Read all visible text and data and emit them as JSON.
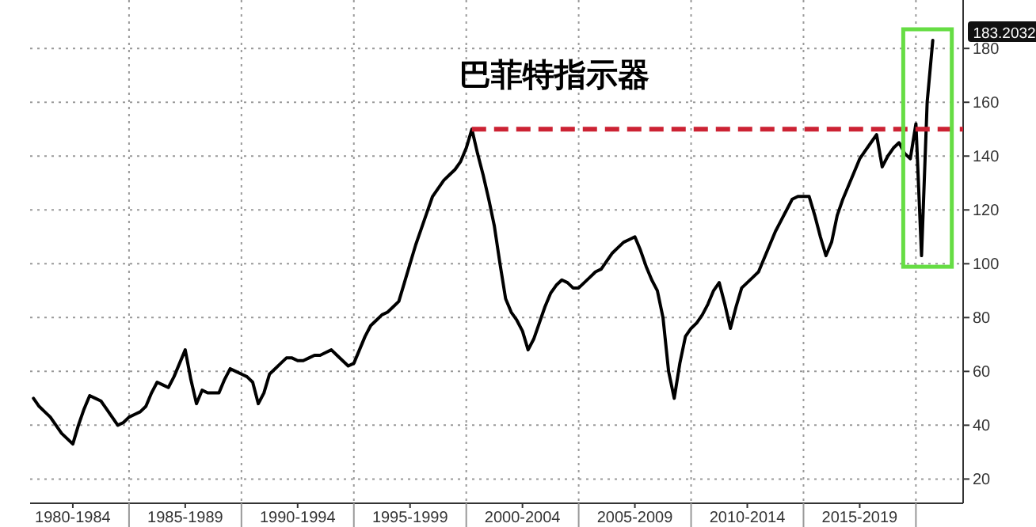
{
  "chart_data": {
    "type": "line",
    "title": "巴菲特指示器",
    "categories": [
      null,
      null,
      null,
      null,
      null,
      null,
      null,
      "1980-1984",
      null,
      null,
      null,
      null,
      null,
      null,
      null,
      null,
      null,
      null,
      null,
      null,
      null,
      null,
      null,
      null,
      null,
      null,
      null,
      "1985-1989",
      null,
      null,
      null,
      null,
      null,
      null,
      null,
      null,
      null,
      null,
      null,
      null,
      null,
      null,
      null,
      null,
      null,
      null,
      null,
      "1990-1994",
      null,
      null,
      null,
      null,
      null,
      null,
      null,
      null,
      null,
      null,
      null,
      null,
      null,
      null,
      null,
      null,
      null,
      null,
      null,
      "1995-1999",
      null,
      null,
      null,
      null,
      null,
      null,
      null,
      null,
      null,
      null,
      null,
      null,
      null,
      null,
      null,
      null,
      null,
      null,
      null,
      "2000-2004",
      null,
      null,
      null,
      null,
      null,
      null,
      null,
      null,
      null,
      null,
      null,
      null,
      null,
      null,
      null,
      null,
      null,
      null,
      null,
      "2005-2009",
      null,
      null,
      null,
      null,
      null,
      null,
      null,
      null,
      null,
      null,
      null,
      null,
      null,
      null,
      null,
      null,
      null,
      null,
      null,
      "2010-2014",
      null,
      null,
      null,
      null,
      null,
      null,
      null,
      null,
      null,
      null,
      null,
      null,
      null,
      null,
      null,
      null,
      null,
      null,
      null,
      "2015-2019",
      null,
      null,
      null,
      null,
      null,
      null,
      null,
      null,
      null,
      null,
      null,
      null,
      null
    ],
    "series": [
      {
        "color": "#000000",
        "values": [
          50,
          47,
          45,
          43,
          40,
          37,
          35,
          33,
          40,
          46,
          51,
          50,
          49,
          46,
          43,
          40,
          41,
          43,
          44,
          45,
          47,
          52,
          56,
          55,
          54,
          58,
          63,
          68,
          57,
          48,
          53,
          52,
          52,
          52,
          57,
          61,
          60,
          59,
          58,
          56,
          48,
          52,
          59,
          61,
          63,
          65,
          65,
          64,
          64,
          65,
          66,
          66,
          67,
          68,
          66,
          64,
          62,
          63,
          68,
          73,
          77,
          79,
          81,
          82,
          84,
          86,
          93,
          100,
          107,
          113,
          119,
          125,
          128,
          131,
          133,
          135,
          138,
          143,
          150,
          141,
          133,
          124,
          114,
          100,
          87,
          82,
          79,
          75,
          68,
          72,
          78,
          84,
          89,
          92,
          94,
          93,
          91,
          91,
          93,
          95,
          97,
          98,
          101,
          104,
          106,
          108,
          109,
          110,
          105,
          99,
          94,
          90,
          80,
          60,
          50,
          63,
          73,
          76,
          78,
          81,
          85,
          90,
          93,
          85,
          76,
          84,
          91,
          93,
          95,
          97,
          102,
          107,
          112,
          116,
          120,
          124,
          125,
          125,
          125,
          118,
          110,
          103,
          108,
          118,
          124,
          129,
          134,
          139,
          142,
          145,
          148,
          136,
          140,
          143,
          145,
          141,
          139,
          152,
          103,
          160,
          183
        ]
      }
    ],
    "ylim": [
      11,
      198
    ],
    "yticks": [
      20,
      40,
      60,
      80,
      100,
      120,
      140,
      160,
      180
    ],
    "grid": true,
    "ref_lines": [
      {
        "axis": "y",
        "value": 150,
        "color": "#cc2233",
        "line_style": "dashed"
      }
    ],
    "annotations": [
      "183.2032"
    ]
  }
}
